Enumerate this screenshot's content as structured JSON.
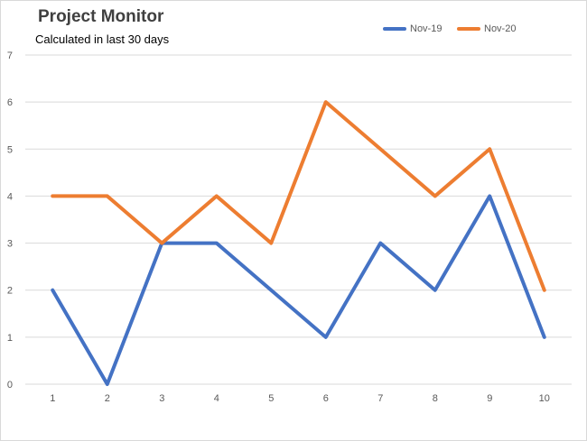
{
  "chart_data": {
    "type": "line",
    "title": "Project Monitor",
    "subtitle": "Calculated in last 30 days",
    "x": [
      1,
      2,
      3,
      4,
      5,
      6,
      7,
      8,
      9,
      10
    ],
    "series": [
      {
        "name": "Nov-19",
        "color": "#4472c4",
        "values": [
          2,
          0,
          3,
          3,
          2,
          1,
          3,
          2,
          4,
          1
        ]
      },
      {
        "name": "Nov-20",
        "color": "#ed7d31",
        "values": [
          4,
          4,
          3,
          4,
          3,
          6,
          5,
          4,
          5,
          2
        ]
      }
    ],
    "ylim": [
      0,
      7
    ],
    "yticks": [
      0,
      1,
      2,
      3,
      4,
      5,
      6,
      7
    ],
    "grid": true,
    "legend_position": "top-right"
  }
}
